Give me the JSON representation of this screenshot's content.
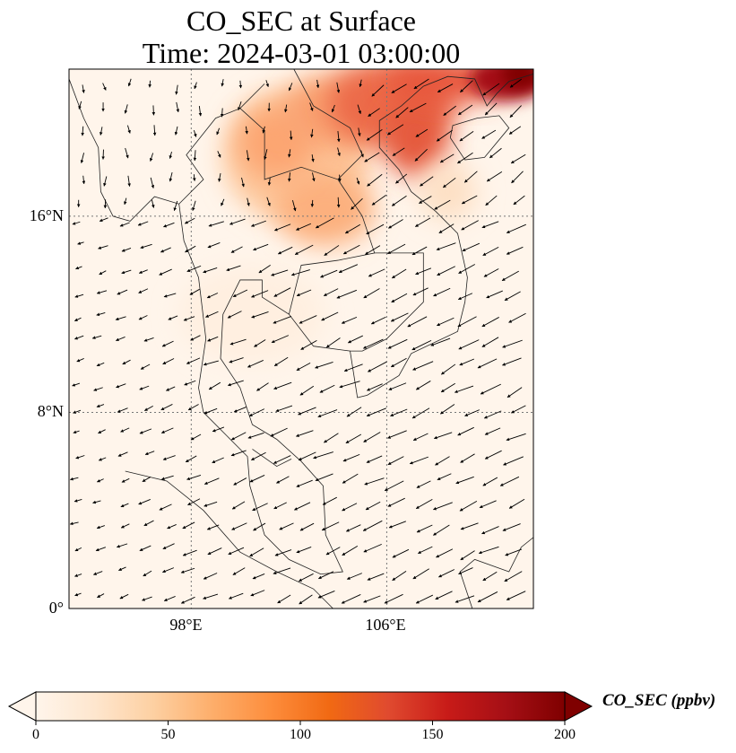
{
  "title": {
    "line1": "CO_SEC at Surface",
    "line2": "Time: 2024-03-01 03:00:00"
  },
  "map": {
    "extent": {
      "lon": [
        93,
        112
      ],
      "lat": [
        0,
        22
      ]
    },
    "lat_ticks": [
      {
        "value": 0,
        "label": "0°"
      },
      {
        "value": 8,
        "label": "8°N"
      },
      {
        "value": 16,
        "label": "16°N"
      }
    ],
    "lon_ticks": [
      {
        "value": 98,
        "label": "98°E"
      },
      {
        "value": 106,
        "label": "106°E"
      }
    ],
    "background_color": "#fff5eb"
  },
  "colorbar": {
    "label": "CO_SEC (ppbv)",
    "min": 0,
    "max": 200,
    "ticks": [
      "0",
      "50",
      "100",
      "150",
      "200"
    ],
    "colors": [
      "#fff5eb",
      "#fee6ce",
      "#fdd0a2",
      "#fdae6b",
      "#fd8d3c",
      "#f16913",
      "#e04a2f",
      "#c81b18",
      "#a50f15",
      "#7f0000"
    ]
  }
}
